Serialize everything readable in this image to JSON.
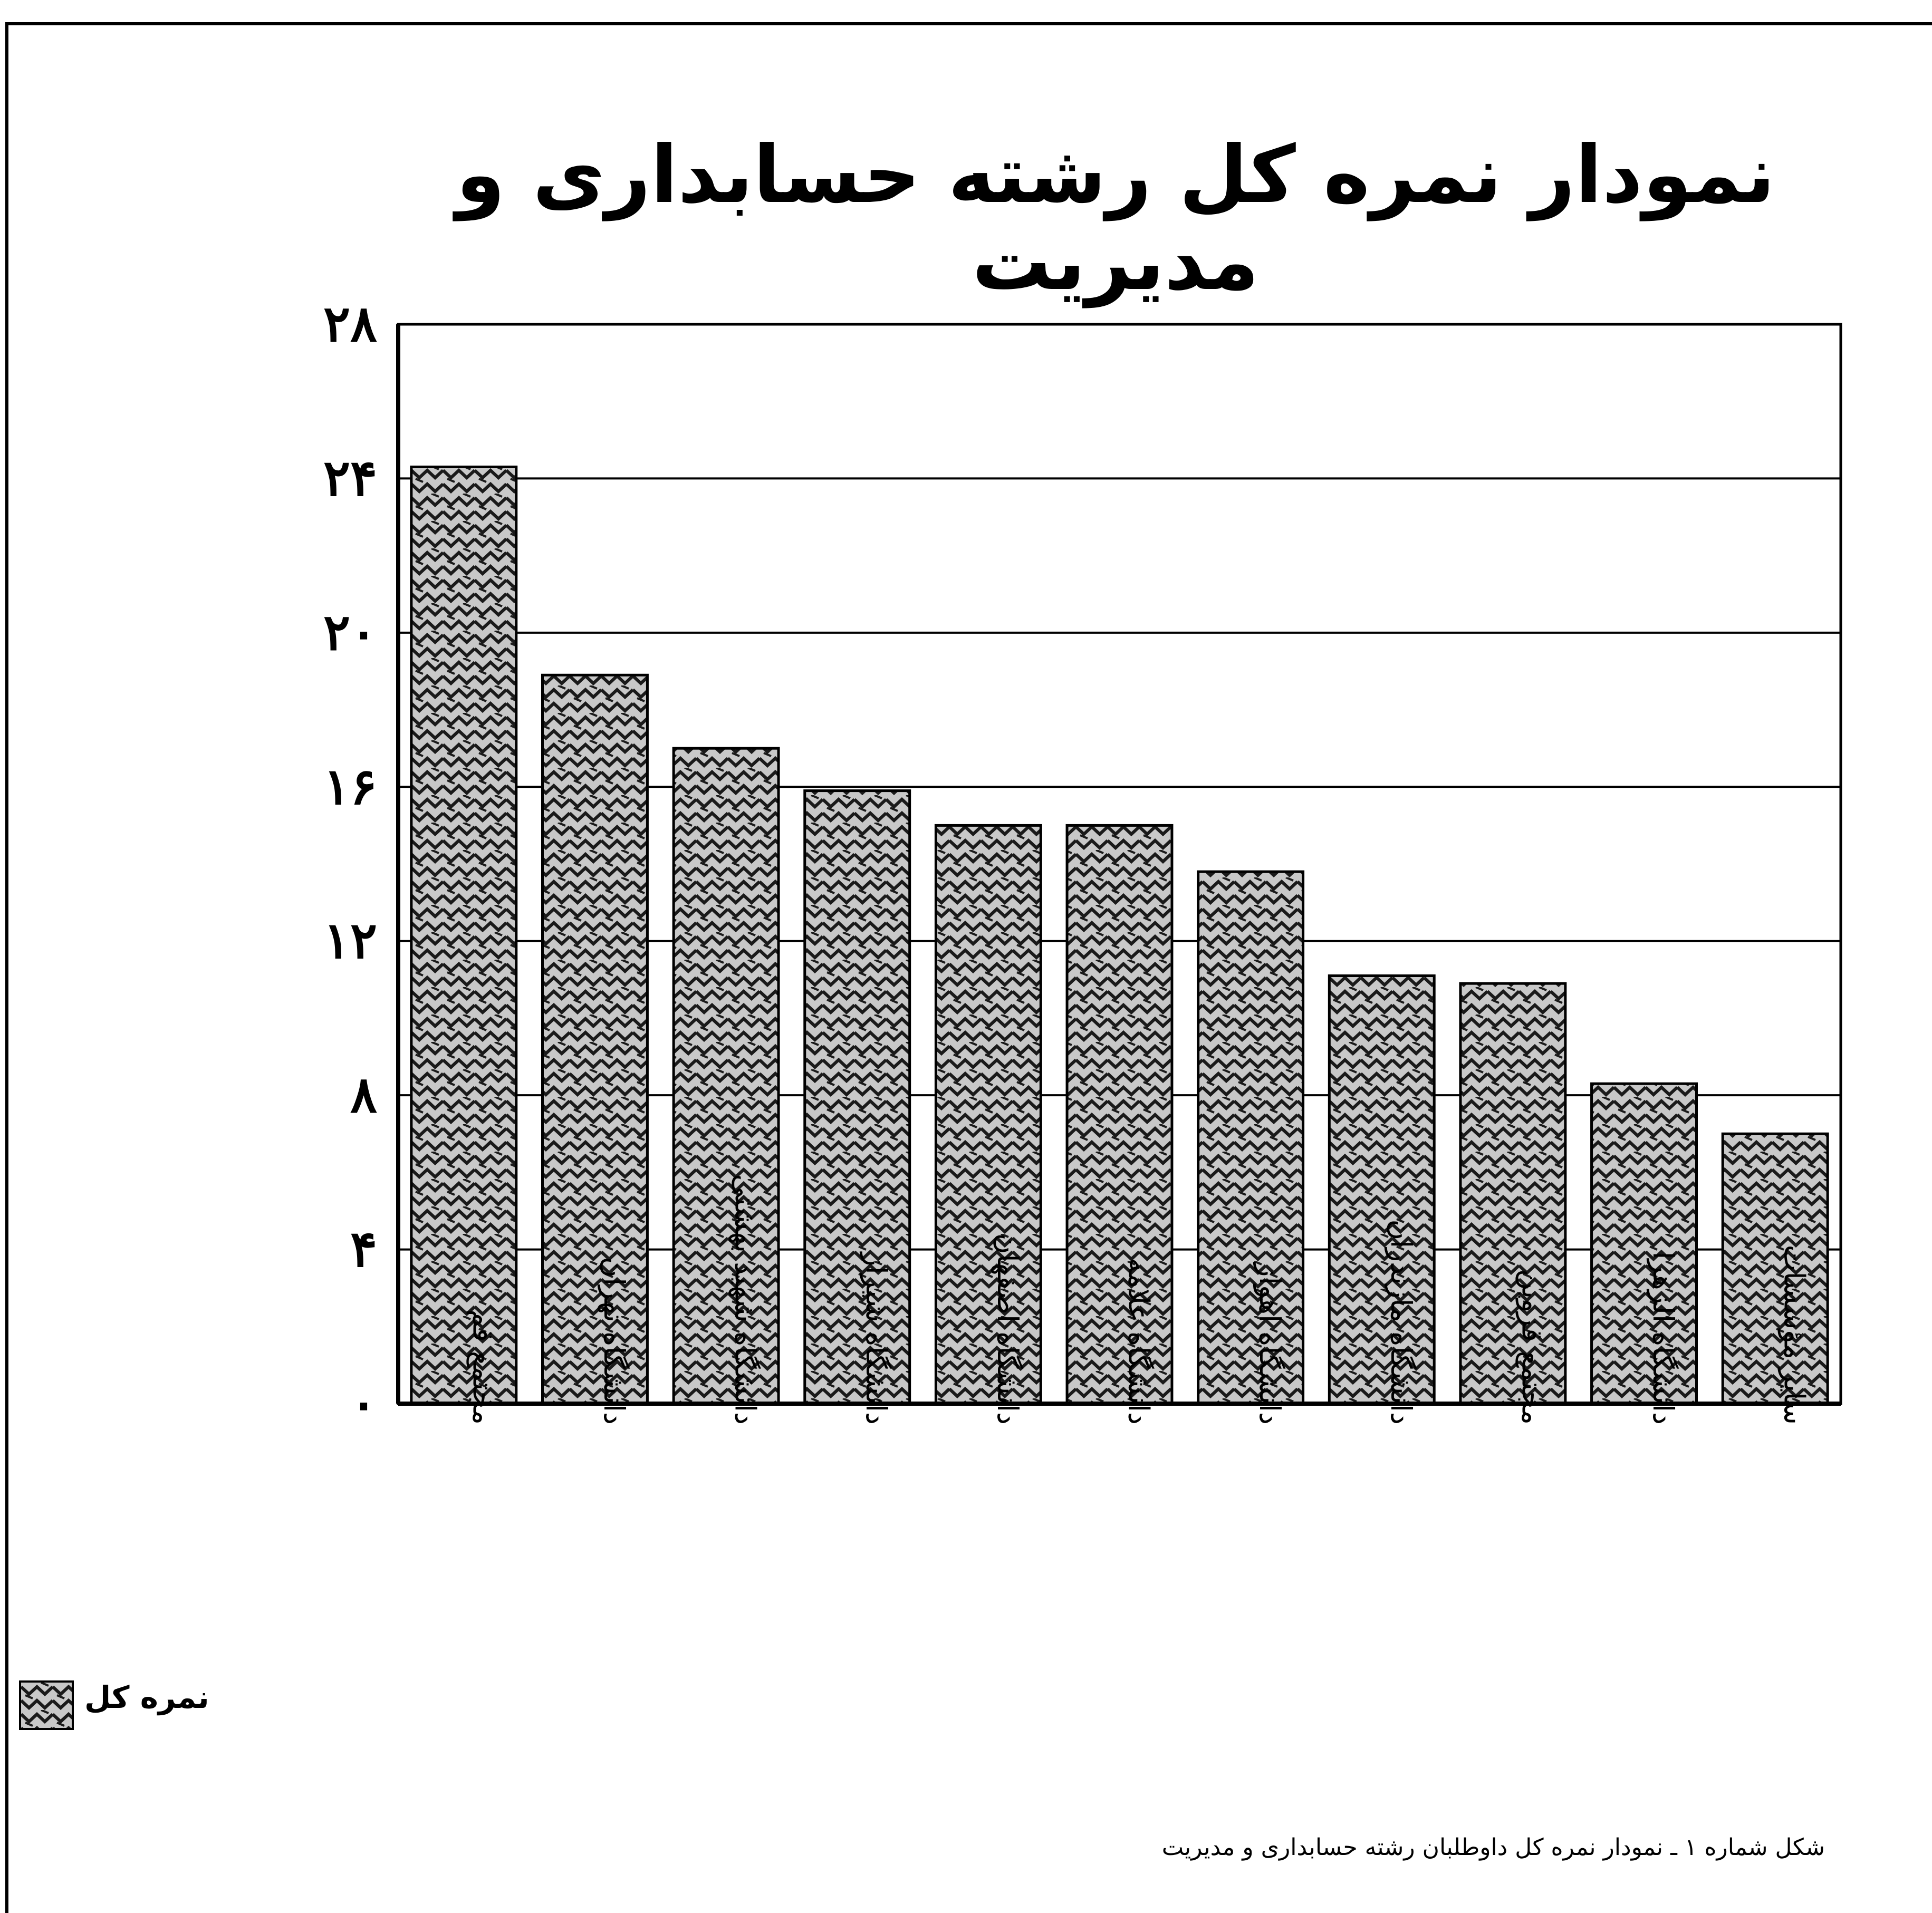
{
  "chart_data": {
    "type": "bar",
    "title": "نمودار نمره کل رشته حسابداری و مدیریت",
    "xlabel": "",
    "ylabel": "",
    "categories": [
      "مجتمع قم",
      "دانشگاه تهران",
      "دانشگاه شهید بهشتی",
      "دانشگاه شیراز",
      "دانشگاه اصفهان",
      "دانشگاه علامه",
      "دانشگاه اهواز",
      "دانشگاه مازندران",
      "مجتمع قزوین",
      "دانشگاه الزهرا",
      "سایر مؤسسات"
    ],
    "series": [
      {
        "name": "نمره کل",
        "values": [
          24.3,
          18.9,
          17.0,
          15.9,
          15.0,
          15.0,
          13.8,
          11.1,
          10.9,
          8.3,
          7.0
        ]
      }
    ],
    "ylim": [
      0,
      28
    ],
    "yticks": [
      0,
      4,
      8,
      12,
      16,
      20,
      24,
      28
    ],
    "ytick_labels": [
      "۰",
      "۴",
      "۸",
      "۱۲",
      "۱۶",
      "۲۰",
      "۲۴",
      "۲۸"
    ],
    "grid": true,
    "legend": "bottom-left"
  },
  "legend": {
    "label": "نمره کل"
  },
  "caption": "شکل شماره ۱ ـ نمودار نمره کل داوطلبان رشته حسابداری و مدیریت",
  "colors": {
    "bar_fill": "#c8c8c8",
    "bar_pattern": "#1a1a1a",
    "axis": "#000000",
    "grid": "#000000"
  }
}
